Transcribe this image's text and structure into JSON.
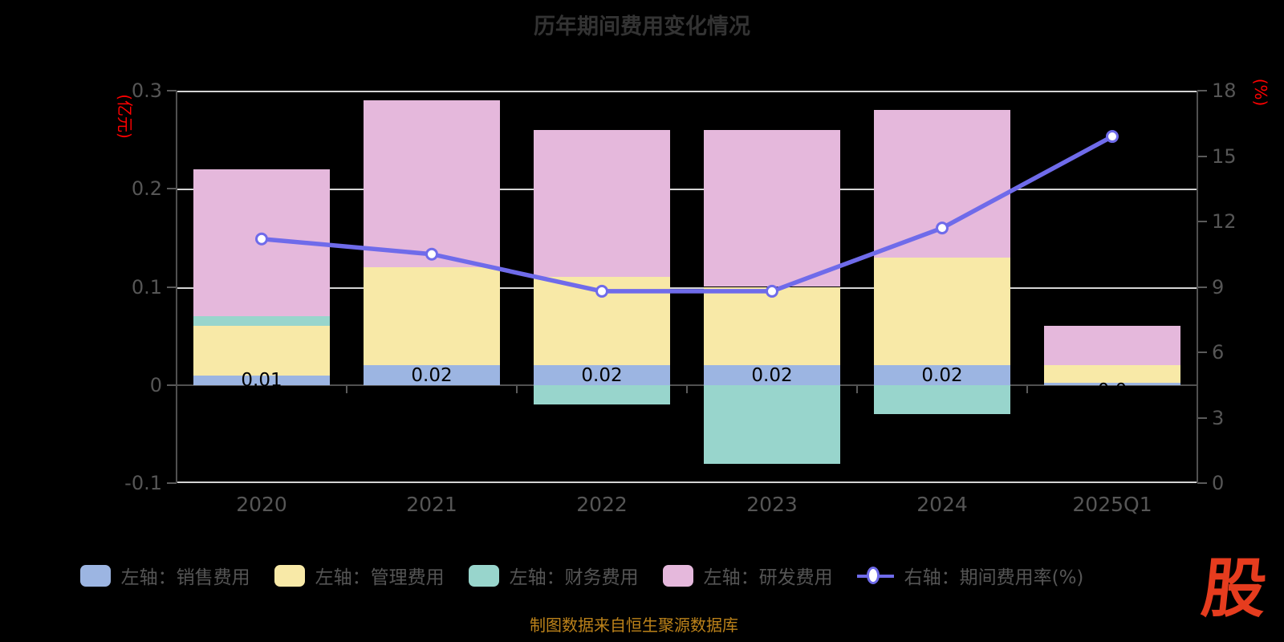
{
  "title": "历年期间费用变化情况",
  "chart_data": {
    "type": "bar",
    "subtype": "stacked-bars-with-line",
    "title": "历年期间费用变化情况",
    "categories": [
      "2020",
      "2021",
      "2022",
      "2023",
      "2024",
      "2025Q1"
    ],
    "series": [
      {
        "name": "左轴：销售费用",
        "type": "bar",
        "axis": "left",
        "color": "#9cb5e2",
        "values": [
          0.01,
          0.02,
          0.02,
          0.02,
          0.02,
          0.002
        ],
        "labels": [
          "0.01",
          "0.02",
          "0.02",
          "0.02",
          "0.02",
          "0.0"
        ]
      },
      {
        "name": "左轴：管理费用",
        "type": "bar",
        "axis": "left",
        "color": "#f8e9a7",
        "values": [
          0.05,
          0.1,
          0.09,
          0.08,
          0.11,
          0.018
        ]
      },
      {
        "name": "左轴：财务费用",
        "type": "bar",
        "axis": "left",
        "color": "#98d5cc",
        "values": [
          0.01,
          0,
          -0.02,
          -0.08,
          -0.03,
          0
        ]
      },
      {
        "name": "左轴：研发费用",
        "type": "bar",
        "axis": "left",
        "color": "#e5b8dc",
        "values": [
          0.15,
          0.17,
          0.15,
          0.16,
          0.15,
          0.04
        ]
      },
      {
        "name": "右轴：期间费用率(%)",
        "type": "line",
        "axis": "right",
        "color": "#6f6bea",
        "marker": "circle-white-fill",
        "values": [
          11.2,
          10.5,
          8.8,
          8.8,
          11.7,
          15.9
        ]
      }
    ],
    "left_axis": {
      "unit": "(亿元)",
      "min": -0.1,
      "max": 0.3,
      "ticks": [
        "0.3",
        "0.2",
        "0.1",
        "0",
        "-0.1"
      ]
    },
    "right_axis": {
      "unit": "(%)",
      "min": 0,
      "max": 18,
      "ticks": [
        "18",
        "15",
        "12",
        "9",
        "6",
        "3",
        "0"
      ]
    },
    "grid": "horizontal-gridlines-at-left-ticks-except-zero",
    "legend_position": "bottom"
  },
  "footer": {
    "source_text": "制图数据来自恒生聚源数据库"
  },
  "logo": {
    "text": "股"
  },
  "colors": {
    "background": "#000000",
    "title": "#333333",
    "axis_label": "#565656",
    "axis_line": "#505050",
    "gridline": "#d3d3d3",
    "axis_unit": "#ff0000",
    "bar_label": "#000000",
    "footer": "#bc821a",
    "logo": "#e63c1e",
    "line": "#6f6bea"
  }
}
